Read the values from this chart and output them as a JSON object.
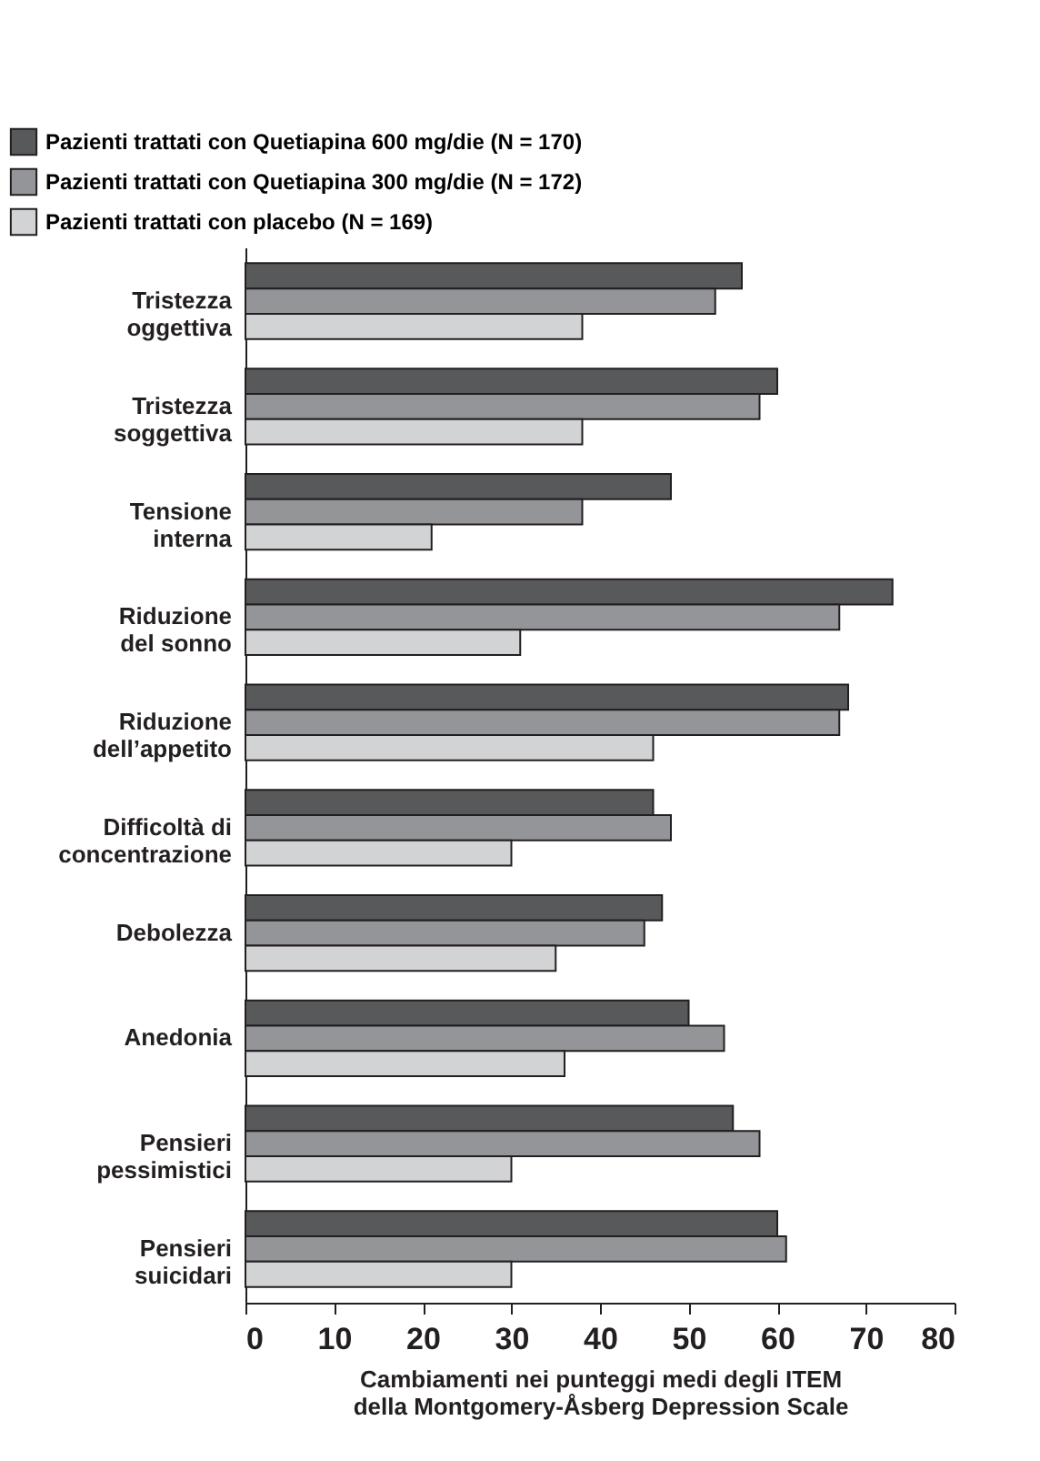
{
  "chart_data": {
    "type": "bar",
    "orientation": "horizontal",
    "xlabel": "Cambiamenti nei punteggi medi degli ITEM\ndella Montgomery-Åsberg Depression Scale",
    "categories": [
      "Tristezza\noggettiva",
      "Tristezza\nsoggettiva",
      "Tensione\ninterna",
      "Riduzione\ndel sonno",
      "Riduzione\ndell’appetito",
      "Difficoltà di\nconcentrazione",
      "Debolezza",
      "Anedonia",
      "Pensieri\npessimistici",
      "Pensieri\nsuicidari"
    ],
    "series": [
      {
        "name": "Pazienti trattati con Quetiapina 600 mg/die (N = 170)",
        "color": "#58595b",
        "values": [
          56,
          60,
          48,
          73,
          68,
          46,
          47,
          50,
          55,
          60
        ]
      },
      {
        "name": "Pazienti trattati con Quetiapina 300 mg/die (N = 172)",
        "color": "#939598",
        "values": [
          53,
          58,
          38,
          67,
          67,
          48,
          45,
          54,
          58,
          61
        ]
      },
      {
        "name": "Pazienti trattati con placebo (N = 169)",
        "color": "#d1d3d4",
        "values": [
          38,
          38,
          21,
          31,
          46,
          30,
          35,
          36,
          30,
          30
        ]
      }
    ],
    "xlim": [
      0,
      80
    ],
    "xticks": [
      0,
      10,
      20,
      30,
      40,
      50,
      60,
      70,
      80
    ],
    "grid": false,
    "legend": "top left"
  }
}
